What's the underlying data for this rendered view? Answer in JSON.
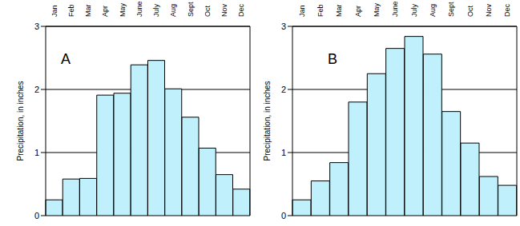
{
  "chart_data": [
    {
      "type": "bar",
      "annotation": "A",
      "ylabel": "Precipitation, in inches",
      "categories": [
        "Jan",
        "Feb",
        "Mar",
        "Apr",
        "May",
        "June",
        "July",
        "Aug",
        "Sept",
        "Oct",
        "Nov",
        "Dec"
      ],
      "values": [
        0.25,
        0.58,
        0.59,
        1.91,
        1.94,
        2.39,
        2.46,
        2.01,
        1.56,
        1.07,
        0.65,
        0.42
      ],
      "color": "#bff0fb",
      "ylim": [
        0,
        3
      ],
      "yticks": [
        0,
        1,
        2,
        3
      ],
      "grid": true
    },
    {
      "type": "bar",
      "annotation": "B",
      "ylabel": "Precipitation, in inches",
      "categories": [
        "Jan",
        "Feb",
        "Mar",
        "Apr",
        "May",
        "June",
        "July",
        "Aug",
        "Sept",
        "Oct",
        "Nov",
        "Dec"
      ],
      "values": [
        0.25,
        0.55,
        0.84,
        1.8,
        2.25,
        2.65,
        2.84,
        2.56,
        1.65,
        1.15,
        0.62,
        0.48
      ],
      "color": "#bff0fb",
      "ylim": [
        0,
        3
      ],
      "yticks": [
        0,
        1,
        2,
        3
      ],
      "grid": true
    }
  ]
}
